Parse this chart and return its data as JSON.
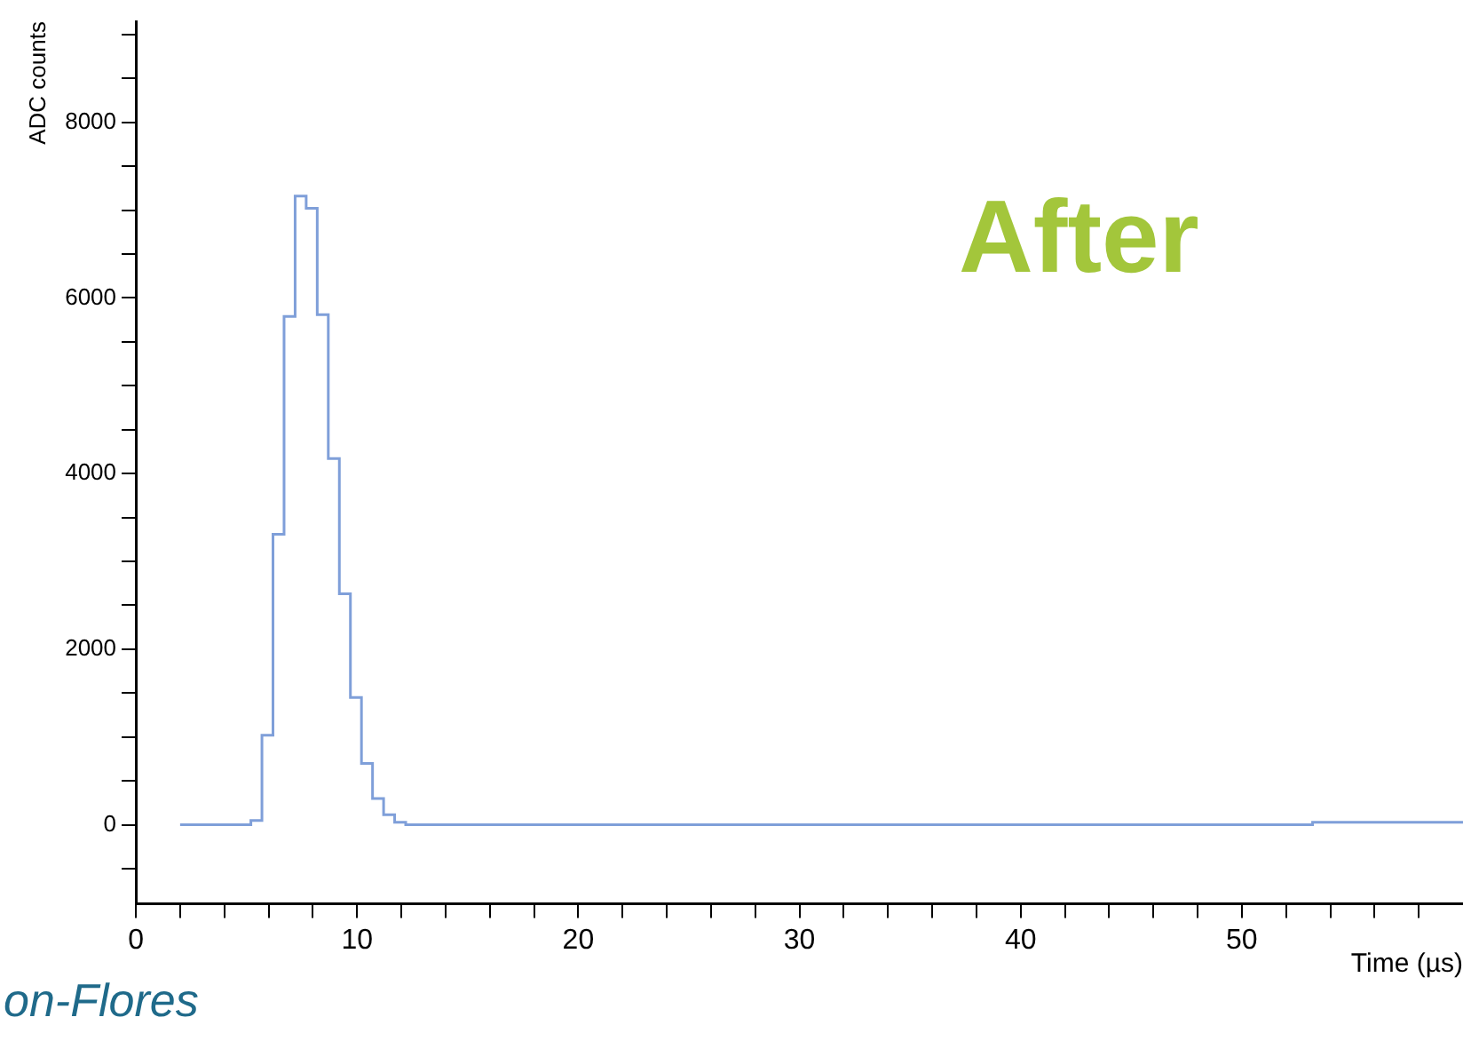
{
  "chart_data": {
    "type": "histogram",
    "xlabel": "Time (µs)",
    "ylabel": "ADC counts",
    "bins": [
      2,
      5.2,
      5.7,
      6.2,
      6.7,
      7.2,
      7.7,
      8.2,
      8.7,
      9.2,
      9.7,
      10.2,
      10.7,
      11.2,
      11.7,
      12.2,
      53.2,
      60
    ],
    "values": [
      0,
      50,
      1020,
      3310,
      5790,
      7160,
      7020,
      5810,
      4170,
      2630,
      1450,
      700,
      300,
      115,
      30,
      0,
      30
    ],
    "color": "#7f9fd9",
    "xlim": [
      0,
      60
    ],
    "ylim": [
      -900,
      9150
    ],
    "xticks": [
      0,
      {
        "value": 2,
        "label": null
      },
      {
        "value": 4,
        "label": null
      },
      {
        "value": 6,
        "label": null
      },
      {
        "value": 8,
        "label": null
      },
      10,
      {
        "value": 12,
        "label": null
      },
      {
        "value": 14,
        "label": null
      },
      {
        "value": 16,
        "label": null
      },
      {
        "value": 18,
        "label": null
      },
      20,
      {
        "value": 22,
        "label": null
      },
      {
        "value": 24,
        "label": null
      },
      {
        "value": 26,
        "label": null
      },
      {
        "value": 28,
        "label": null
      },
      30,
      {
        "value": 32,
        "label": null
      },
      {
        "value": 34,
        "label": null
      },
      {
        "value": 36,
        "label": null
      },
      {
        "value": 38,
        "label": null
      },
      40,
      {
        "value": 42,
        "label": null
      },
      {
        "value": 44,
        "label": null
      },
      {
        "value": 46,
        "label": null
      },
      {
        "value": 48,
        "label": null
      },
      50,
      {
        "value": 52,
        "label": null
      },
      {
        "value": 54,
        "label": null
      },
      {
        "value": 56,
        "label": null
      },
      {
        "value": 58,
        "label": null
      }
    ],
    "yticks": [
      {
        "value": -500,
        "label": null
      },
      0,
      {
        "value": 500,
        "label": null
      },
      {
        "value": 1000,
        "label": null
      },
      {
        "value": 1500,
        "label": null
      },
      2000,
      {
        "value": 2500,
        "label": null
      },
      {
        "value": 3000,
        "label": null
      },
      {
        "value": 3500,
        "label": null
      },
      4000,
      {
        "value": 4500,
        "label": null
      },
      {
        "value": 5000,
        "label": null
      },
      {
        "value": 5500,
        "label": null
      },
      6000,
      {
        "value": 6500,
        "label": null
      },
      {
        "value": 7000,
        "label": null
      },
      {
        "value": 7500,
        "label": null
      },
      8000,
      {
        "value": 8500,
        "label": null
      },
      {
        "value": 9000,
        "label": null
      }
    ],
    "annotations": [
      "After",
      "on-Flores"
    ],
    "grid": false,
    "legend": false
  }
}
